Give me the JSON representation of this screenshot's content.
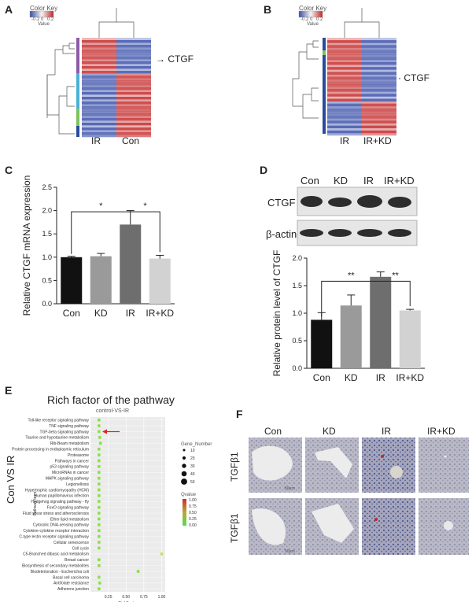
{
  "panels": {
    "A": {
      "label": "A",
      "color_key": "Color Key",
      "key_ticks": [
        "-0.2",
        "0",
        "0.2"
      ],
      "key_value": "Value",
      "columns": [
        "IR",
        "Con"
      ],
      "gene": "CTGF"
    },
    "B": {
      "label": "B",
      "color_key": "Color Key",
      "key_ticks": [
        "-0.2",
        "0",
        "0.2"
      ],
      "key_value": "Value",
      "columns": [
        "IR",
        "IR+KD"
      ],
      "gene": "CTGF"
    },
    "C": {
      "label": "C"
    },
    "D": {
      "label": "D",
      "bands": [
        "CTGF",
        "β-actin"
      ],
      "lanes": [
        "Con",
        "KD",
        "IR",
        "IR+KD"
      ]
    },
    "E": {
      "label": "E",
      "title": "Rich factor of the pathway",
      "subtitle": "control-VS-IR",
      "side_label": "Con VS IR",
      "gene_number_title": "Gene_Number",
      "gene_number_values": [
        "10",
        "20",
        "30",
        "40",
        "50"
      ],
      "qvalue_title": "Qvalue",
      "qvalue_ticks": [
        "1.00",
        "0.75",
        "0.50",
        "0.25",
        "0.00"
      ]
    },
    "F": {
      "label": "F",
      "columns": [
        "Con",
        "KD",
        "IR",
        "IR+KD"
      ],
      "rows": [
        "TGFβ1",
        "TGFβ1"
      ],
      "scale_bar": "50μm"
    }
  },
  "chart_data": [
    {
      "type": "bar",
      "panel": "C",
      "categories": [
        "Con",
        "KD",
        "IR",
        "IR+KD"
      ],
      "values": [
        1.0,
        1.02,
        1.7,
        0.97
      ],
      "errors": [
        0.02,
        0.06,
        0.3,
        0.07
      ],
      "ylabel": "Relative CTGF mRNA expression",
      "ylim": [
        0,
        2.5
      ],
      "yticks": [
        "0.0",
        "0.5",
        "1.0",
        "1.5",
        "2.0",
        "2.5"
      ],
      "colors": [
        "#111111",
        "#9a9a9a",
        "#6e6e6e",
        "#d2d2d2"
      ],
      "sig": [
        "*",
        "*"
      ]
    },
    {
      "type": "bar",
      "panel": "D",
      "categories": [
        "Con",
        "KD",
        "IR",
        "IR+KD"
      ],
      "values": [
        0.88,
        1.14,
        1.66,
        1.05
      ],
      "errors": [
        0.13,
        0.19,
        0.09,
        0.02
      ],
      "ylabel": "Relative protein level of CTGF",
      "ylim": [
        0,
        2.0
      ],
      "yticks": [
        "0.0",
        "0.5",
        "1.0",
        "1.5",
        "2.0"
      ],
      "colors": [
        "#111111",
        "#9a9a9a",
        "#6e6e6e",
        "#d2d2d2"
      ],
      "sig": [
        "**",
        "**"
      ]
    },
    {
      "type": "scatter",
      "panel": "E",
      "xlabel": "RichFactor",
      "ylabel": "Pathway term",
      "xticks": [
        "0.25",
        "0.50",
        "0.75",
        "1.00"
      ],
      "xlim": [
        0,
        1.05
      ],
      "pathways": [
        "Toll-like receptor signaling pathway",
        "TNF signaling pathway",
        "TGF-beta signaling pathway",
        "Taurine and hypotaurine metabolism",
        "Rib-Beam metabolism",
        "Protein processing in endoplasmic reticulum",
        "Proteasome",
        "Pathways in cancer",
        "p53 signaling pathway",
        "MicroRNAs in cancer",
        "MAPK signaling pathway",
        "Legionellosis",
        "Hypertrophic cardiomyopathy (HCM)",
        "Human papillomavirus infection",
        "Hedgehog signaling pathway - fly",
        "FoxO signaling pathway",
        "Fluid shear stress and atherosclerosis",
        "Ether lipid metabolism",
        "Cytosolic DNA-sensing pathway",
        "Cytokine-cytokine receptor interaction",
        "C-type lectin receptor signaling pathway",
        "Cellular senescence",
        "Cell cycle",
        "C5-Branched dibasic acid metabolism",
        "Breast cancer",
        "Biosynthesis of secondary metabolites",
        "Biodeterioration - Escherichia coli",
        "Basal cell carcinoma",
        "Antifolate resistance",
        "Adherens junction"
      ],
      "x": [
        0.12,
        0.12,
        0.12,
        0.13,
        0.14,
        0.12,
        0.12,
        0.12,
        0.12,
        0.12,
        0.12,
        0.12,
        0.12,
        0.12,
        0.12,
        0.12,
        0.12,
        0.12,
        0.12,
        0.12,
        0.12,
        0.12,
        0.12,
        1.0,
        0.12,
        0.12,
        0.67,
        0.12,
        0.13,
        0.12
      ],
      "highlight": "TGF-beta signaling pathway"
    }
  ]
}
